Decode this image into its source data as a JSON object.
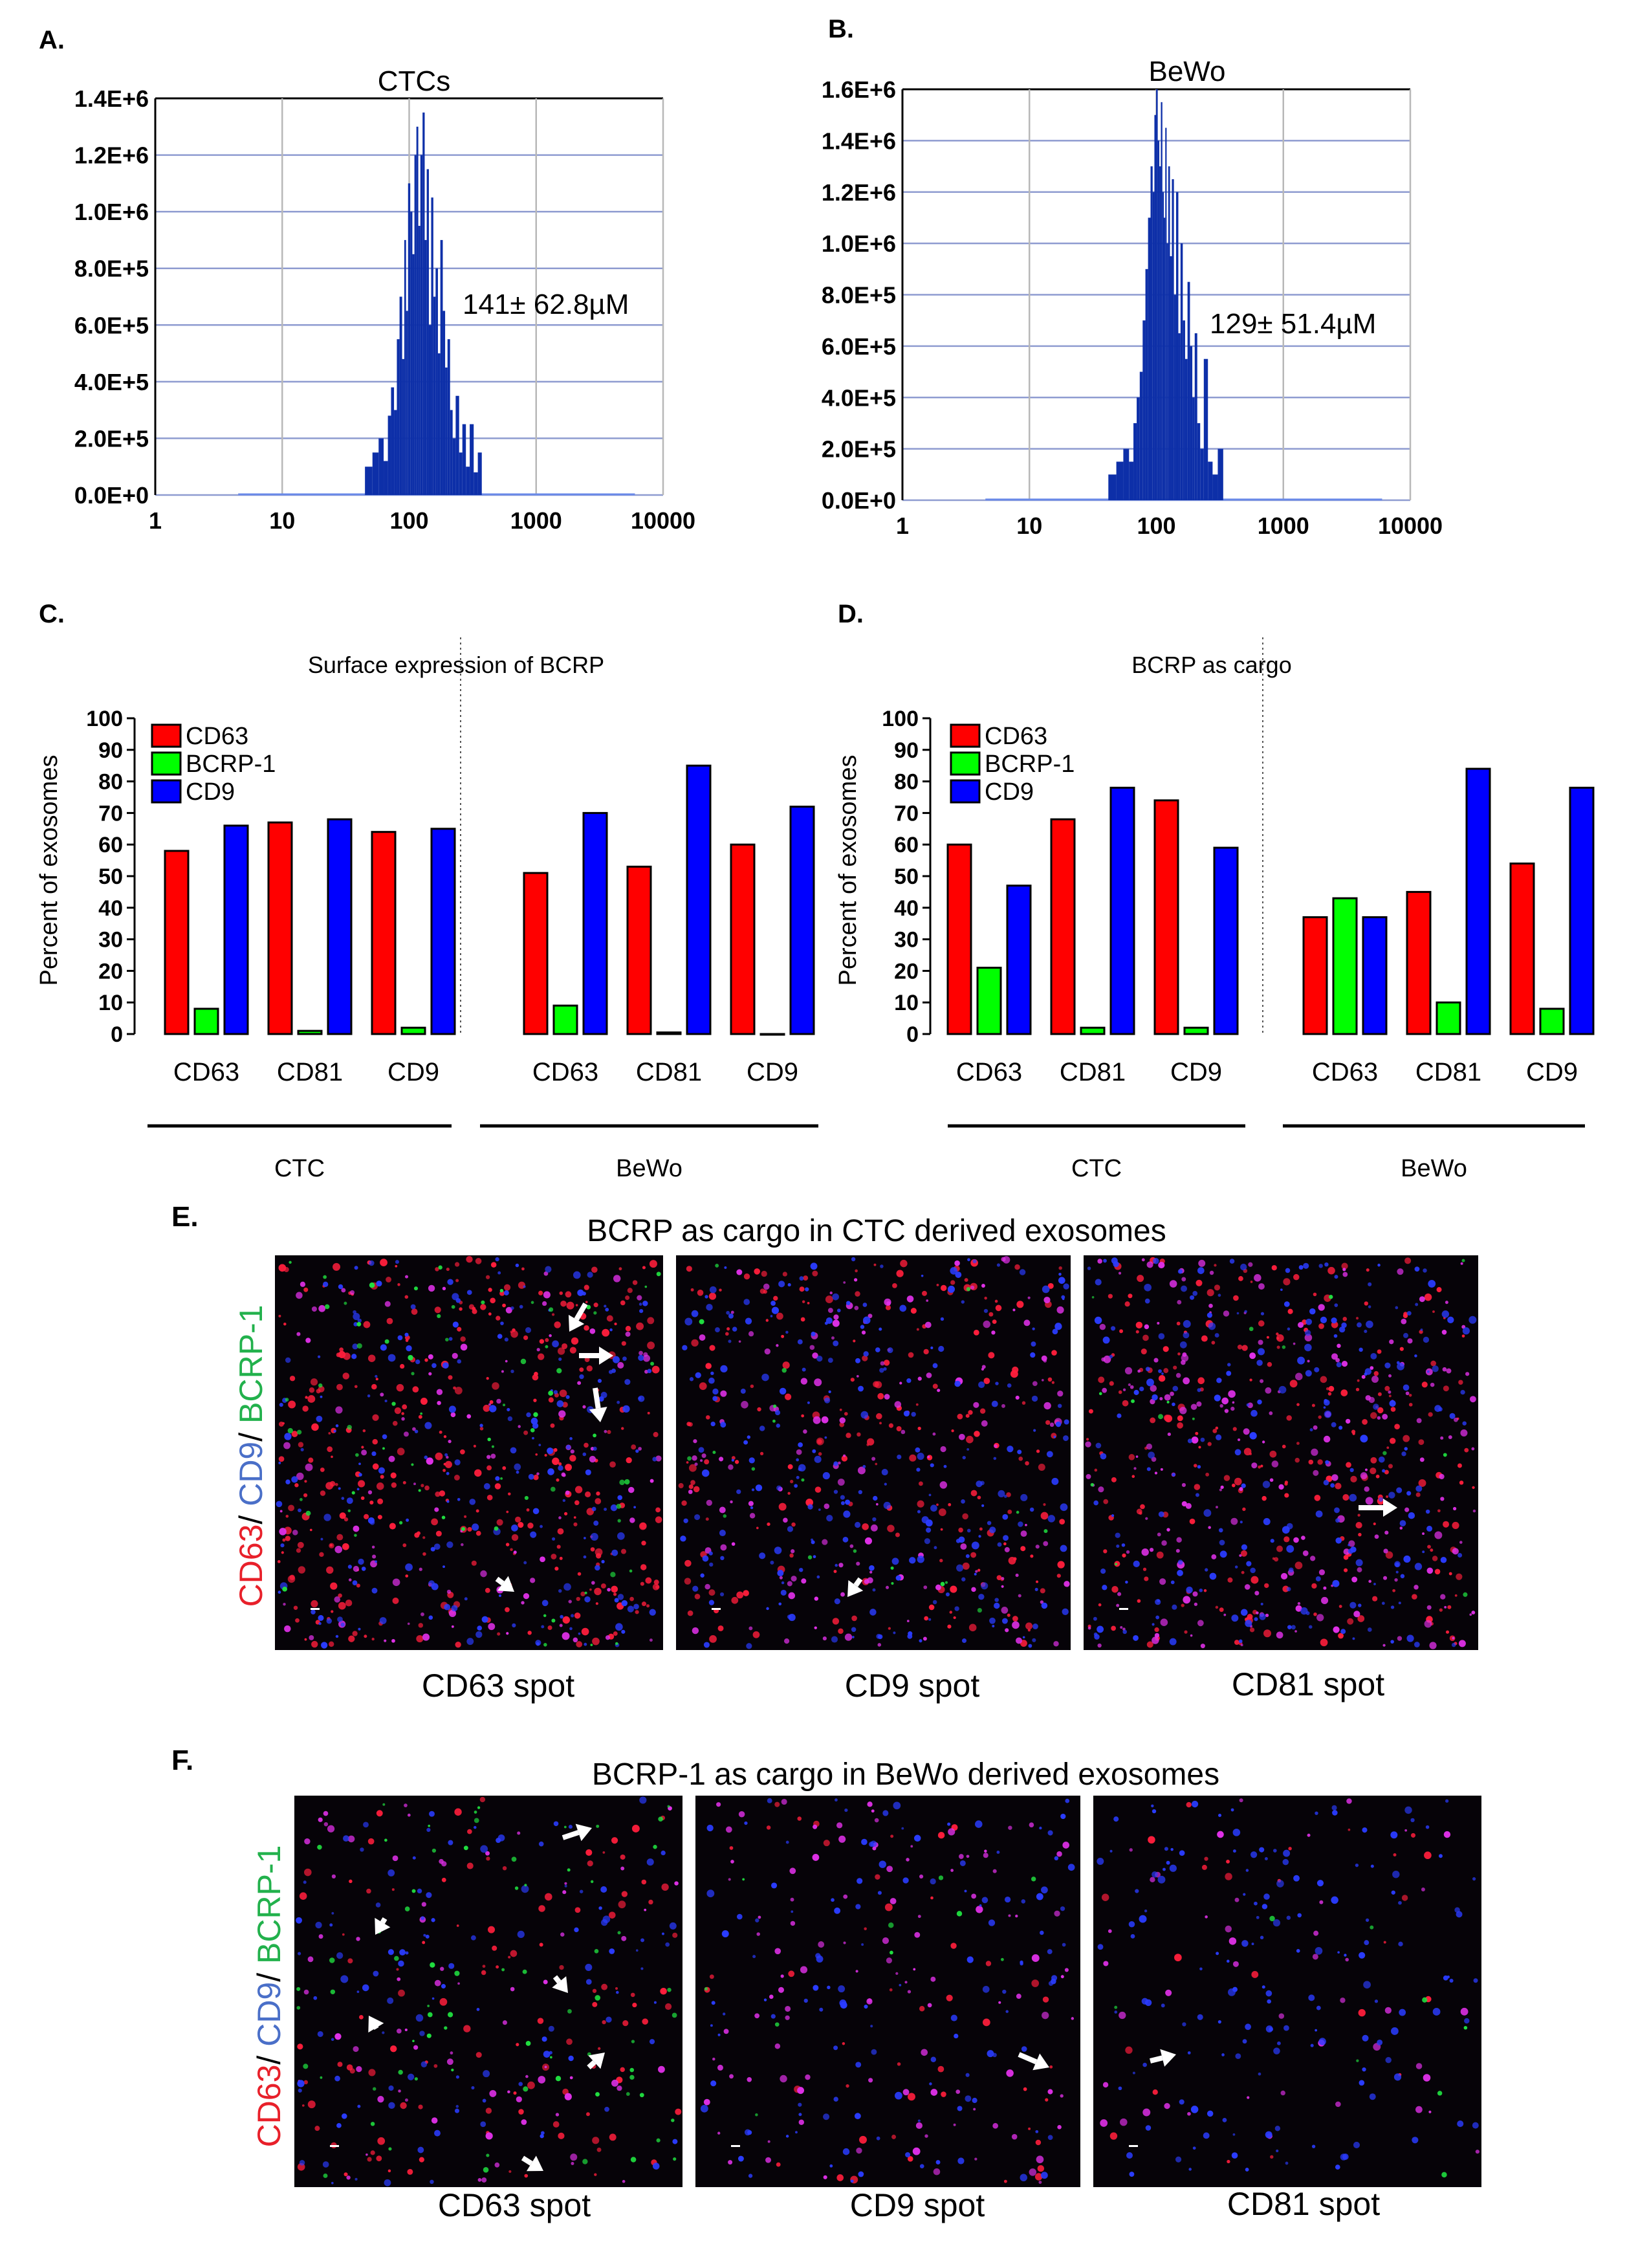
{
  "chart_data": [
    {
      "panel": "A.",
      "type": "bar",
      "title": "CTCs",
      "annotation": "141± 62.8µM",
      "xscale": "log",
      "xlim": [
        1,
        10000
      ],
      "xticks": [
        "1",
        "10",
        "100",
        "1000",
        "10000"
      ],
      "ylim": [
        0,
        1400000
      ],
      "yticks": [
        "0.0E+0",
        "2.0E+5",
        "4.0E+5",
        "6.0E+5",
        "8.0E+5",
        "1.0E+6",
        "1.2E+6",
        "1.4E+6"
      ],
      "grid": true,
      "x": [
        48,
        55,
        60,
        66,
        70,
        74,
        78,
        82,
        86,
        90,
        93,
        96,
        100,
        104,
        108,
        112,
        116,
        120,
        125,
        130,
        135,
        140,
        146,
        152,
        158,
        165,
        172,
        180,
        188,
        196,
        205,
        215,
        225,
        240,
        255,
        270,
        290,
        310,
        335,
        360
      ],
      "values": [
        100000,
        150000,
        200000,
        120000,
        280000,
        380000,
        300000,
        550000,
        700000,
        480000,
        900000,
        650000,
        1100000,
        1000000,
        850000,
        1200000,
        1300000,
        950000,
        1200000,
        1350000,
        900000,
        1150000,
        600000,
        1050000,
        700000,
        800000,
        500000,
        900000,
        650000,
        450000,
        550000,
        300000,
        200000,
        350000,
        150000,
        250000,
        100000,
        250000,
        80000,
        150000
      ]
    },
    {
      "panel": "B.",
      "type": "bar",
      "title": "BeWo",
      "annotation": "129± 51.4µM",
      "xscale": "log",
      "xlim": [
        1,
        10000
      ],
      "xticks": [
        "1",
        "10",
        "100",
        "1000",
        "10000"
      ],
      "ylim": [
        0,
        1600000
      ],
      "yticks": [
        "0.0E+0",
        "2.0E+5",
        "4.0E+5",
        "6.0E+5",
        "8.0E+5",
        "1.0E+6",
        "1.2E+6",
        "1.4E+6",
        "1.6E+6"
      ],
      "grid": true,
      "x": [
        45,
        52,
        58,
        64,
        68,
        72,
        76,
        80,
        84,
        88,
        92,
        95,
        98,
        101,
        104,
        107,
        110,
        113,
        116,
        119,
        122,
        126,
        130,
        135,
        140,
        146,
        152,
        158,
        165,
        172,
        180,
        188,
        196,
        205,
        215,
        228,
        245,
        265,
        290,
        320
      ],
      "values": [
        100000,
        150000,
        200000,
        150000,
        300000,
        400000,
        500000,
        700000,
        900000,
        1100000,
        1300000,
        1200000,
        1500000,
        1600000,
        1400000,
        1300000,
        1550000,
        1200000,
        1100000,
        1450000,
        1000000,
        1300000,
        950000,
        1250000,
        800000,
        1200000,
        650000,
        1000000,
        700000,
        550000,
        850000,
        600000,
        400000,
        650000,
        300000,
        200000,
        550000,
        150000,
        100000,
        200000
      ]
    },
    {
      "panel": "C.",
      "type": "bar",
      "title": "Surface expression of BCRP",
      "ylabel": "Percent of exosomes",
      "ylim": [
        0,
        100
      ],
      "yticks": [
        "0",
        "10",
        "20",
        "30",
        "40",
        "50",
        "60",
        "70",
        "80",
        "90",
        "100"
      ],
      "legend": "top-left",
      "categories": [
        "CD63",
        "CD81",
        "CD9",
        "CD63",
        "CD81",
        "CD9"
      ],
      "groups": [
        {
          "label": "CTC",
          "count": 3
        },
        {
          "label": "BeWo",
          "count": 3
        }
      ],
      "series": [
        {
          "name": "CD63",
          "color": "#ff0000",
          "values": [
            58,
            67,
            64,
            51,
            53,
            60
          ]
        },
        {
          "name": "BCRP-1",
          "color": "#00ff00",
          "values": [
            8,
            1,
            2,
            9,
            0.5,
            0
          ]
        },
        {
          "name": "CD9",
          "color": "#0000ff",
          "values": [
            66,
            68,
            65,
            70,
            85,
            72
          ]
        }
      ]
    },
    {
      "panel": "D.",
      "type": "bar",
      "title": "BCRP as cargo",
      "ylabel": "Percent of exosomes",
      "ylim": [
        0,
        100
      ],
      "yticks": [
        "0",
        "10",
        "20",
        "30",
        "40",
        "50",
        "60",
        "70",
        "80",
        "90",
        "100"
      ],
      "legend": "top-left",
      "categories": [
        "CD63",
        "CD81",
        "CD9",
        "CD63",
        "CD81",
        "CD9"
      ],
      "groups": [
        {
          "label": "CTC",
          "count": 3
        },
        {
          "label": "BeWo",
          "count": 3
        }
      ],
      "series": [
        {
          "name": "CD63",
          "color": "#ff0000",
          "values": [
            60,
            68,
            74,
            37,
            45,
            54
          ]
        },
        {
          "name": "BCRP-1",
          "color": "#00ff00",
          "values": [
            21,
            2,
            2,
            43,
            10,
            8
          ]
        },
        {
          "name": "CD9",
          "color": "#0000ff",
          "values": [
            47,
            78,
            59,
            37,
            84,
            78
          ]
        }
      ]
    }
  ],
  "panels": {
    "E": {
      "letter": "E.",
      "title": "BCRP as cargo in CTC derived exosomes",
      "side_label": {
        "a": "CD63",
        "b": "CD9",
        "c": "BCRP-1",
        "sep": "/ "
      },
      "captions": [
        "CD63 spot",
        "CD9 spot",
        "CD81 spot"
      ]
    },
    "F": {
      "letter": "F.",
      "title": "BCRP-1 as cargo in BeWo derived exosomes",
      "side_label": {
        "a": "CD63",
        "b": "CD9",
        "c": "BCRP-1",
        "sep": "/ "
      },
      "captions": [
        "CD63 spot",
        "CD9 spot",
        "CD81 spot"
      ]
    }
  },
  "colors": {
    "cd63": "#ff0000",
    "bcrp": "#00ff00",
    "cd9": "#0000ff",
    "label_red": "#e8202a",
    "label_blue": "#4a6fc8",
    "label_green": "#22b14c",
    "hist": "#0d2fa8",
    "hist_base": "#6a8ae8",
    "grid": "#8e9bd0",
    "micro_bg": "#060308"
  }
}
